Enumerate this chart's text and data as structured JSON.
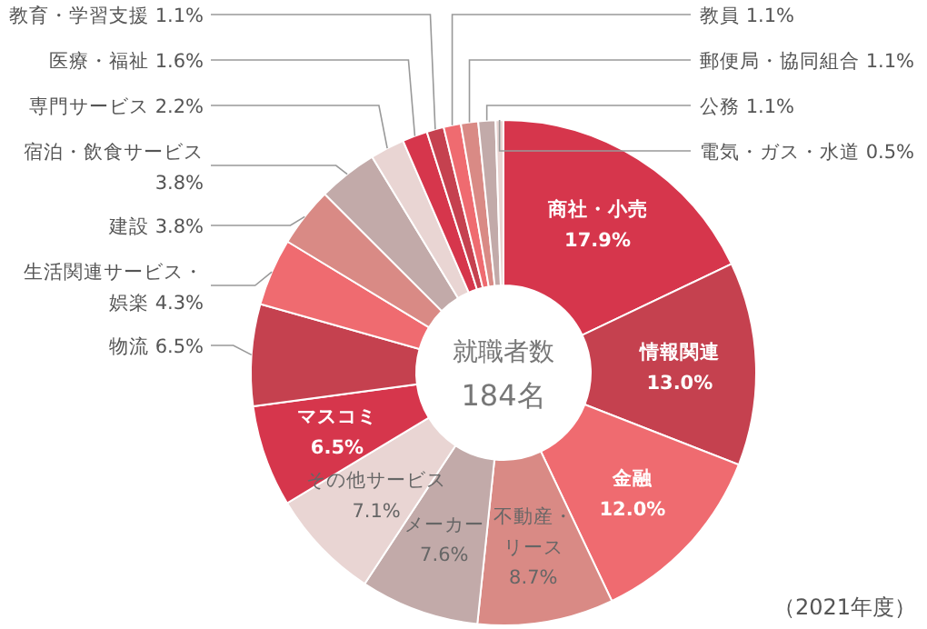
{
  "chart_data": {
    "type": "donut",
    "categories": [
      "商社・小売",
      "情報関連",
      "金融",
      "不動産・リース",
      "メーカー",
      "その他サービス",
      "マスコミ",
      "物流",
      "生活関連サービス・娯楽",
      "建設",
      "宿泊・飲食サービス",
      "専門サービス",
      "医療・福祉",
      "教育・学習支援",
      "教員",
      "郵便局・協同組合",
      "公務",
      "電気・ガス・水道"
    ],
    "values": [
      17.9,
      13.0,
      12.0,
      8.7,
      7.6,
      7.1,
      6.5,
      6.5,
      4.3,
      3.8,
      3.8,
      2.2,
      1.6,
      1.1,
      1.1,
      1.1,
      1.1,
      0.5
    ],
    "value_labels": [
      "17.9%",
      "13.0%",
      "12.0%",
      "8.7%",
      "7.6%",
      "7.1%",
      "6.5%",
      "6.5%",
      "4.3%",
      "3.8%",
      "3.8%",
      "2.2%",
      "1.6%",
      "1.1%",
      "1.1%",
      "1.1%",
      "1.1%",
      "0.5%"
    ],
    "colors": [
      "#d6364c",
      "#c5414f",
      "#ef6b70",
      "#d98a85",
      "#c2aaa9",
      "#e9d5d3",
      "#d6364c",
      "#c5414f",
      "#ef6b70",
      "#d98a85",
      "#c2aaa9",
      "#e9d5d3",
      "#d6364c",
      "#c5414f",
      "#ef6b70",
      "#d98a85",
      "#c2aaa9",
      "#e9d5d3"
    ],
    "annotations": [
      "就職者数",
      "184名",
      "（2021年度）"
    ]
  }
}
